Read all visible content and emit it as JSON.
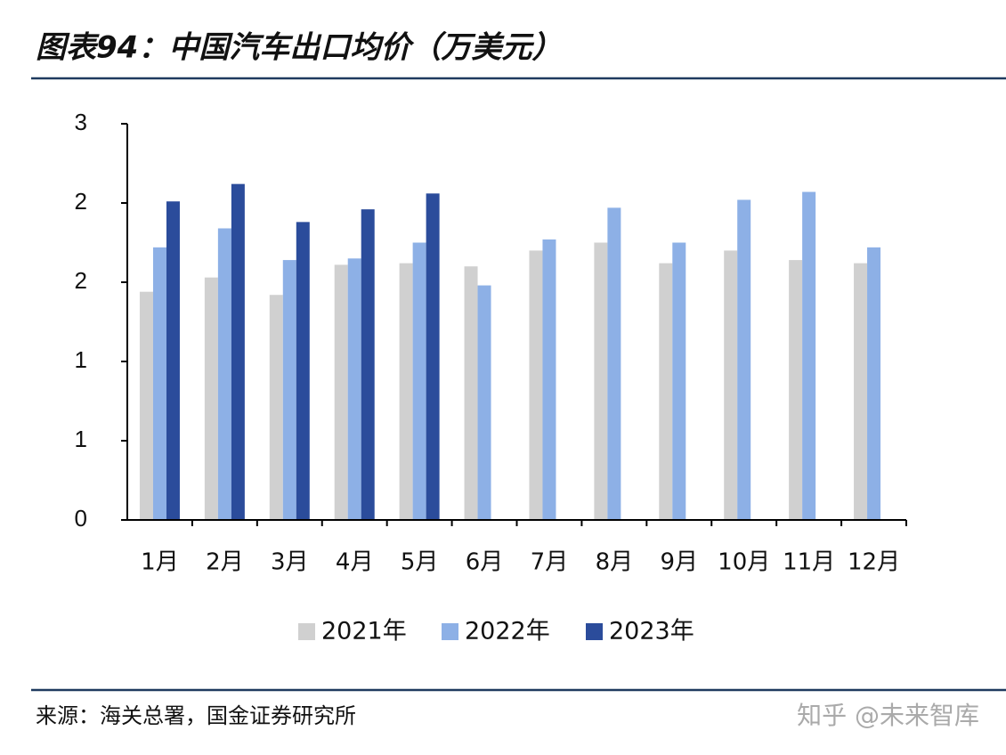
{
  "chart_data": {
    "type": "bar",
    "title": "图表94：中国汽车出口均价（万美元）",
    "source": "来源：海关总署，国金证券研究所",
    "watermark": "知乎 @未来智库",
    "categories": [
      "1月",
      "2月",
      "3月",
      "4月",
      "5月",
      "6月",
      "7月",
      "8月",
      "9月",
      "10月",
      "11月",
      "12月"
    ],
    "series": [
      {
        "name": "2021年",
        "color": "#d0d0d0",
        "values": [
          1.44,
          1.53,
          1.42,
          1.61,
          1.62,
          1.6,
          1.7,
          1.75,
          1.62,
          1.7,
          1.64,
          1.62
        ]
      },
      {
        "name": "2022年",
        "color": "#8db0e6",
        "values": [
          1.72,
          1.84,
          1.64,
          1.65,
          1.75,
          1.48,
          1.77,
          1.97,
          1.75,
          2.02,
          2.07,
          1.72
        ]
      },
      {
        "name": "2023年",
        "color": "#2b4c9b",
        "values": [
          2.01,
          2.12,
          1.88,
          1.96,
          2.06,
          null,
          null,
          null,
          null,
          null,
          null,
          null
        ]
      }
    ],
    "ylim": [
      0,
      2.5
    ],
    "yticks": [
      {
        "value": 0,
        "label": "0"
      },
      {
        "value": 0.5,
        "label": "1"
      },
      {
        "value": 1,
        "label": "1"
      },
      {
        "value": 1.5,
        "label": "2"
      },
      {
        "value": 2,
        "label": "2"
      },
      {
        "value": 2.5,
        "label": "3"
      }
    ],
    "legend": "bottom"
  }
}
